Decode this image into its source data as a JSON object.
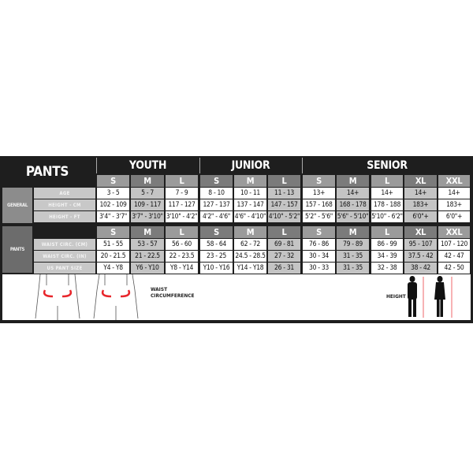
{
  "title": "PANTS",
  "groups": [
    "YOUTH",
    "JUNIOR",
    "SENIOR"
  ],
  "sizes": [
    "S",
    "M",
    "L",
    "S",
    "M",
    "L",
    "S",
    "M",
    "L",
    "XL",
    "XXL"
  ],
  "general": {
    "section": "GENERAL",
    "rows": [
      {
        "label": "AGE",
        "values": [
          "3 - 5",
          "5 - 7",
          "7 - 9",
          "8 - 10",
          "10 - 11",
          "11 - 13",
          "13+",
          "14+",
          "14+",
          "14+",
          "14+"
        ]
      },
      {
        "label": "HEIGHT - CM",
        "values": [
          "102 - 109",
          "109 - 117",
          "117 - 127",
          "127 - 137",
          "137 - 147",
          "147 - 157",
          "157 - 168",
          "168 - 178",
          "178 - 188",
          "183+",
          "183+"
        ]
      },
      {
        "label": "HEIGHT - FT",
        "values": [
          "3'4\" - 3'7\"",
          "3'7\" - 3'10\"",
          "3'10\" - 4'2\"",
          "4'2\" - 4'6\"",
          "4'6\" - 4'10\"",
          "4'10\" - 5'2\"",
          "5'2\" - 5'6\"",
          "5'6\" - 5'10\"",
          "5'10\" - 6'2\"",
          "6'0\"+",
          "6'0\"+"
        ]
      }
    ]
  },
  "pants": {
    "section": "PANTS",
    "rows": [
      {
        "label": "WAIST CIRC. (CM)",
        "values": [
          "51 - 55",
          "53 - 57",
          "56 - 60",
          "58 - 64",
          "62 - 72",
          "69 - 81",
          "76 - 86",
          "79 - 89",
          "86 - 99",
          "95 - 107",
          "107 - 120"
        ]
      },
      {
        "label": "WAIST CIRC. (IN)",
        "values": [
          "20 - 21.5",
          "21 - 22.5",
          "22 - 23.5",
          "23 - 25",
          "24.5 - 28.5",
          "27 - 32",
          "30 - 34",
          "31 - 35",
          "34 - 39",
          "37.5 - 42",
          "42 - 47"
        ]
      },
      {
        "label": "US PANT SIZE",
        "values": [
          "Y4 - Y8",
          "Y6 - Y10",
          "Y8 - Y14",
          "Y10 - Y16",
          "Y14 - Y18",
          "26 - 31",
          "30 - 33",
          "31 - 35",
          "32 - 38",
          "38 - 42",
          "42 - 50"
        ]
      }
    ]
  },
  "illustration": {
    "waist_caption": "WAIST CIRCUMFERENCE",
    "height_caption": "HEIGHT"
  },
  "colors": {
    "frame": "#1e1e1e",
    "arrow": "#e8262b"
  }
}
